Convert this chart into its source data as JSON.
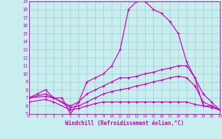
{
  "title": "",
  "xlabel": "Windchill (Refroidissement éolien,°C)",
  "bg_color": "#c8eef0",
  "grid_color": "#9ecece",
  "line_color": "#cc00cc",
  "ylim": [
    5,
    19
  ],
  "xlim": [
    0,
    23
  ],
  "yticks": [
    5,
    6,
    7,
    8,
    9,
    10,
    11,
    12,
    13,
    14,
    15,
    16,
    17,
    18,
    19
  ],
  "xticks": [
    0,
    1,
    2,
    3,
    4,
    5,
    6,
    7,
    8,
    9,
    10,
    11,
    12,
    13,
    14,
    15,
    16,
    17,
    18,
    19,
    20,
    21,
    22,
    23
  ],
  "line1": {
    "x": [
      0,
      1,
      2,
      3,
      4,
      5,
      6,
      7,
      8,
      9,
      10,
      11,
      12,
      13,
      14,
      15,
      16,
      17,
      18,
      19,
      20,
      21,
      22,
      23
    ],
    "y": [
      7.0,
      7.5,
      8.0,
      7.0,
      7.0,
      5.0,
      6.5,
      9.0,
      9.5,
      10.0,
      11.0,
      13.0,
      18.0,
      19.0,
      19.0,
      18.0,
      17.5,
      16.5,
      15.0,
      11.5,
      9.5,
      6.0,
      6.0,
      5.5
    ]
  },
  "line2": {
    "x": [
      0,
      2,
      3,
      5,
      6,
      7,
      8,
      9,
      10,
      11,
      12,
      13,
      14,
      15,
      16,
      17,
      18,
      19,
      20,
      21,
      22,
      23
    ],
    "y": [
      7.0,
      7.5,
      7.0,
      6.0,
      6.5,
      7.5,
      8.0,
      8.5,
      9.0,
      9.5,
      9.5,
      9.7,
      10.0,
      10.2,
      10.5,
      10.7,
      11.0,
      11.0,
      9.5,
      7.5,
      6.5,
      5.5
    ]
  },
  "line3": {
    "x": [
      0,
      2,
      3,
      5,
      6,
      7,
      8,
      9,
      10,
      11,
      12,
      13,
      14,
      15,
      16,
      17,
      18,
      19,
      20,
      21,
      22,
      23
    ],
    "y": [
      7.0,
      7.2,
      7.0,
      5.8,
      6.0,
      6.5,
      7.0,
      7.5,
      7.8,
      8.0,
      8.2,
      8.5,
      8.7,
      9.0,
      9.2,
      9.5,
      9.7,
      9.5,
      8.5,
      6.5,
      6.0,
      5.5
    ]
  },
  "line4": {
    "x": [
      0,
      2,
      3,
      5,
      6,
      7,
      8,
      9,
      10,
      11,
      12,
      13,
      14,
      15,
      16,
      17,
      18,
      19,
      20,
      21,
      22,
      23
    ],
    "y": [
      6.5,
      6.8,
      6.5,
      5.5,
      5.7,
      6.0,
      6.3,
      6.5,
      6.5,
      6.5,
      6.5,
      6.5,
      6.5,
      6.5,
      6.5,
      6.5,
      6.5,
      6.5,
      6.2,
      6.0,
      5.8,
      5.5
    ]
  }
}
